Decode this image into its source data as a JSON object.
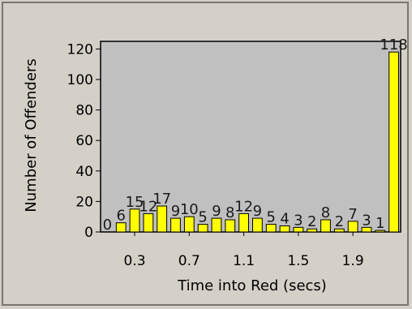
{
  "chart_data": {
    "type": "bar",
    "xlabel": "Time into Red (secs)",
    "ylabel": "Number of Offenders",
    "ylim": [
      0,
      125
    ],
    "yticks": [
      0,
      20,
      40,
      60,
      80,
      100,
      120
    ],
    "xtick_labels": [
      "0.3",
      "0.7",
      "1.1",
      "1.5",
      "1.9"
    ],
    "values": [
      0,
      6,
      15,
      12,
      17,
      9,
      10,
      5,
      9,
      8,
      12,
      9,
      5,
      4,
      3,
      2,
      8,
      2,
      7,
      3,
      1,
      118
    ],
    "data_labels": [
      "0",
      "6",
      "15",
      "12",
      "17",
      "9",
      "10",
      "5",
      "9",
      "8",
      "12",
      "9",
      "5",
      "4",
      "3",
      "2",
      "8",
      "2",
      "7",
      "3",
      "1",
      "118"
    ],
    "bar_color": "#ffff00",
    "plot_background": "#c0c0c0",
    "grid": false
  }
}
